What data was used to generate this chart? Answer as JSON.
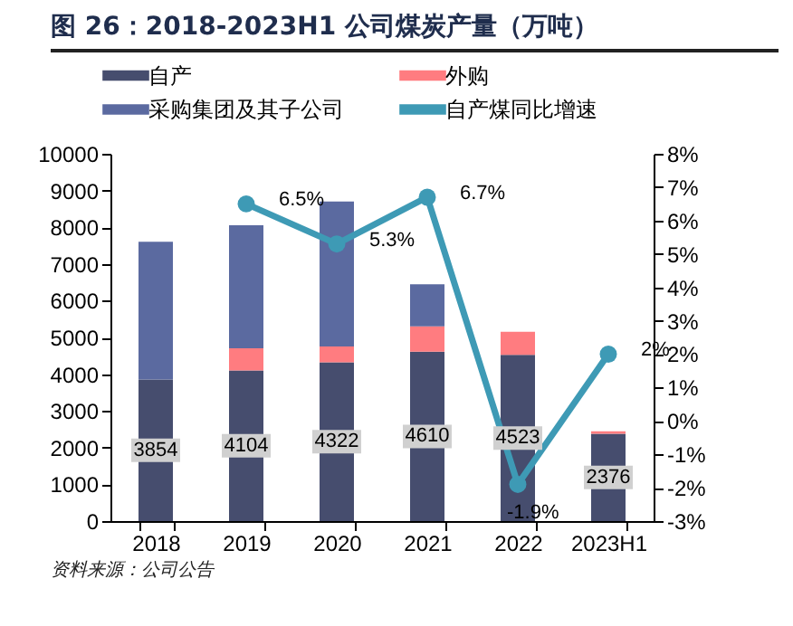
{
  "chart_data": {
    "type": "bar",
    "title": "图 26：2018-2023H1 公司煤炭产量（万吨）",
    "annotations": [
      "资料来源：公司公告"
    ],
    "categories": [
      "2018",
      "2019",
      "2020",
      "2021",
      "2022",
      "2023H1"
    ],
    "stacked": true,
    "legend": "top",
    "grid": false,
    "ylim": [
      0,
      10000
    ],
    "yticks": [
      0,
      1000,
      2000,
      3000,
      4000,
      5000,
      6000,
      7000,
      8000,
      9000,
      10000
    ],
    "y2lim": [
      -3,
      8
    ],
    "y2ticks": [
      {
        "value": -3,
        "label": "-3%"
      },
      {
        "value": -2,
        "label": "-2%"
      },
      {
        "value": -1,
        "label": "-1%"
      },
      {
        "value": 0,
        "label": "0%"
      },
      {
        "value": 1,
        "label": "1%"
      },
      {
        "value": 2,
        "label": "2%"
      },
      {
        "value": 3,
        "label": "3%"
      },
      {
        "value": 4,
        "label": "4%"
      },
      {
        "value": 5,
        "label": "5%"
      },
      {
        "value": 6,
        "label": "6%"
      },
      {
        "value": 7,
        "label": "7%"
      },
      {
        "value": 8,
        "label": "8%"
      }
    ],
    "series": [
      {
        "name": "自产",
        "color": "#464d6e",
        "values": [
          3854,
          4104,
          4322,
          4610,
          4523,
          2376
        ],
        "value_labels": [
          "3854",
          "4104",
          "4322",
          "4610",
          "4523",
          "2376"
        ]
      },
      {
        "name": "外购",
        "color": "#ff7c80",
        "values": [
          null,
          600,
          430,
          690,
          630,
          70
        ]
      },
      {
        "name": "采购集团及其子公司",
        "color": "#5b6aa0",
        "values": [
          3750,
          3350,
          3950,
          1150,
          null,
          null
        ]
      },
      {
        "name": "自产煤同比增速",
        "type": "line",
        "axis": "y2",
        "marker": "circle",
        "color": "#3e9ab5",
        "values": [
          null,
          6.5,
          5.3,
          6.7,
          -1.9,
          2
        ],
        "value_labels": [
          null,
          "6.5%",
          "5.3%",
          "6.7%",
          "-1.9%",
          "2%"
        ]
      }
    ]
  }
}
